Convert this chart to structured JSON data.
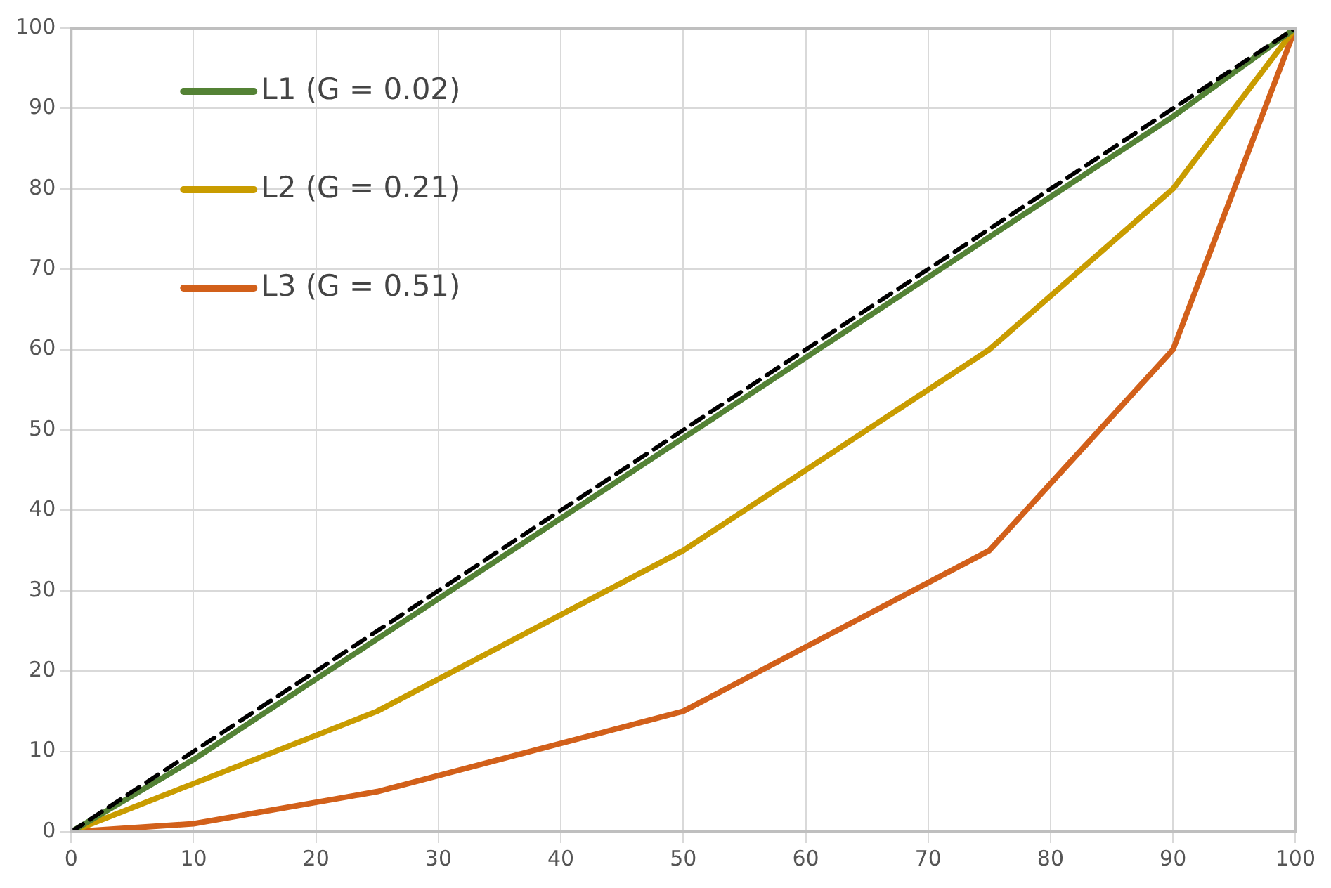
{
  "chart_data": {
    "type": "line",
    "x": [
      0,
      10,
      25,
      50,
      75,
      90,
      100
    ],
    "series": [
      {
        "x": [
          0,
          100
        ],
        "values": [
          0,
          100
        ],
        "color": "#000000",
        "line_style": "dashed"
      },
      {
        "name": "L1 (G = 0.02)",
        "color": "#548235",
        "values": [
          0,
          9,
          24,
          49,
          74,
          89,
          100
        ]
      },
      {
        "name": "L2 (G = 0.21)",
        "color": "#c99c00",
        "values": [
          0,
          6,
          15,
          35,
          60,
          80,
          100
        ]
      },
      {
        "name": "L3 (G = 0.51)",
        "color": "#d2601a",
        "values": [
          0,
          1,
          5,
          15,
          35,
          60,
          100
        ]
      }
    ],
    "xlim": [
      0,
      100
    ],
    "xticks": [
      0,
      10,
      20,
      30,
      40,
      50,
      60,
      70,
      80,
      90,
      100
    ],
    "ylim": [
      0,
      100
    ],
    "yticks": [
      0,
      10,
      20,
      30,
      40,
      50,
      60,
      70,
      80,
      90,
      100
    ],
    "grid": true,
    "legend": "top left",
    "marker": "none",
    "line_style": "solid"
  }
}
